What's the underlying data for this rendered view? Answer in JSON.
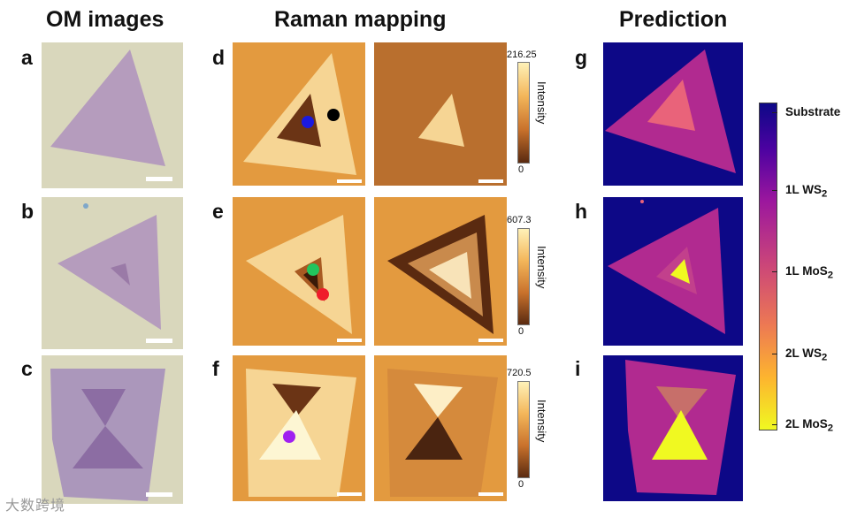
{
  "headers": {
    "om": "OM images",
    "raman": "Raman mapping",
    "prediction": "Prediction"
  },
  "panel_labels": {
    "a": "a",
    "b": "b",
    "c": "c",
    "d": "d",
    "e": "e",
    "f": "f",
    "g": "g",
    "h": "h",
    "i": "i"
  },
  "colorbars": {
    "title": "Intensity",
    "row1": {
      "max": "216.25",
      "min": "0"
    },
    "row2": {
      "max": "607.3",
      "min": "0"
    },
    "row3": {
      "max": "720.5",
      "min": "0"
    }
  },
  "legend": {
    "substrate": "Substrate",
    "ws2_1l": {
      "prefix": "1L WS",
      "sub": "2"
    },
    "mos2_1l": {
      "prefix": "1L MoS",
      "sub": "2"
    },
    "ws2_2l": {
      "prefix": "2L WS",
      "sub": "2"
    },
    "mos2_2l": {
      "prefix": "2L MoS",
      "sub": "2"
    }
  },
  "colors": {
    "substrate": "#0d0887",
    "ws2_1l": "#b12a90",
    "mos2_1l": "#e9637a",
    "ws2_2l": "#fca636",
    "mos2_2l": "#f0f921",
    "om_bg": "#d9d7bc",
    "om_flake": "#b59cbd",
    "raman_bg": "#e39a3f",
    "raman_light": "#f8d79c",
    "raman_dark": "#5a2a10"
  },
  "markers": [
    {
      "name": "blue-marker",
      "color": "#1a1ae0"
    },
    {
      "name": "black-marker",
      "color": "#000000"
    },
    {
      "name": "green-marker",
      "color": "#22c55e"
    },
    {
      "name": "red-marker",
      "color": "#ef1c2b"
    },
    {
      "name": "purple-marker",
      "color": "#a020f0"
    }
  ],
  "watermark": "大数跨境"
}
